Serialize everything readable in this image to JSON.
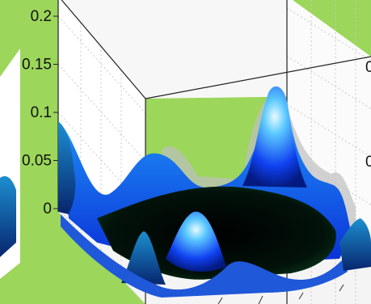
{
  "chart_data": {
    "type": "surface",
    "title": "",
    "xlabel": "",
    "ylabel": "",
    "zlabel": "",
    "zlim": [
      0,
      0.2
    ],
    "z_ticks": [
      0,
      0.05,
      0.1,
      0.15,
      0.2
    ],
    "z_tick_labels": [
      "0",
      "0.05",
      "0.1",
      "0.15",
      "0.2"
    ],
    "right_tick_labels": [
      "0",
      "0"
    ],
    "grid": true,
    "colormap": "winter",
    "colors": {
      "background": "#9cd65a",
      "pane": "#ffffff",
      "low": "#000000",
      "mid": "#0033ff",
      "high": "#40e0e8"
    },
    "peaks": [
      {
        "label": "left-edge ridge",
        "height": 0.09
      },
      {
        "label": "back-left hump",
        "height": 0.055
      },
      {
        "label": "back-right peak",
        "height": 0.14
      },
      {
        "label": "front-center peak",
        "height": 0.06
      },
      {
        "label": "front-left spike",
        "height": 0.05
      },
      {
        "label": "right-edge hump",
        "height": 0.03
      }
    ]
  }
}
